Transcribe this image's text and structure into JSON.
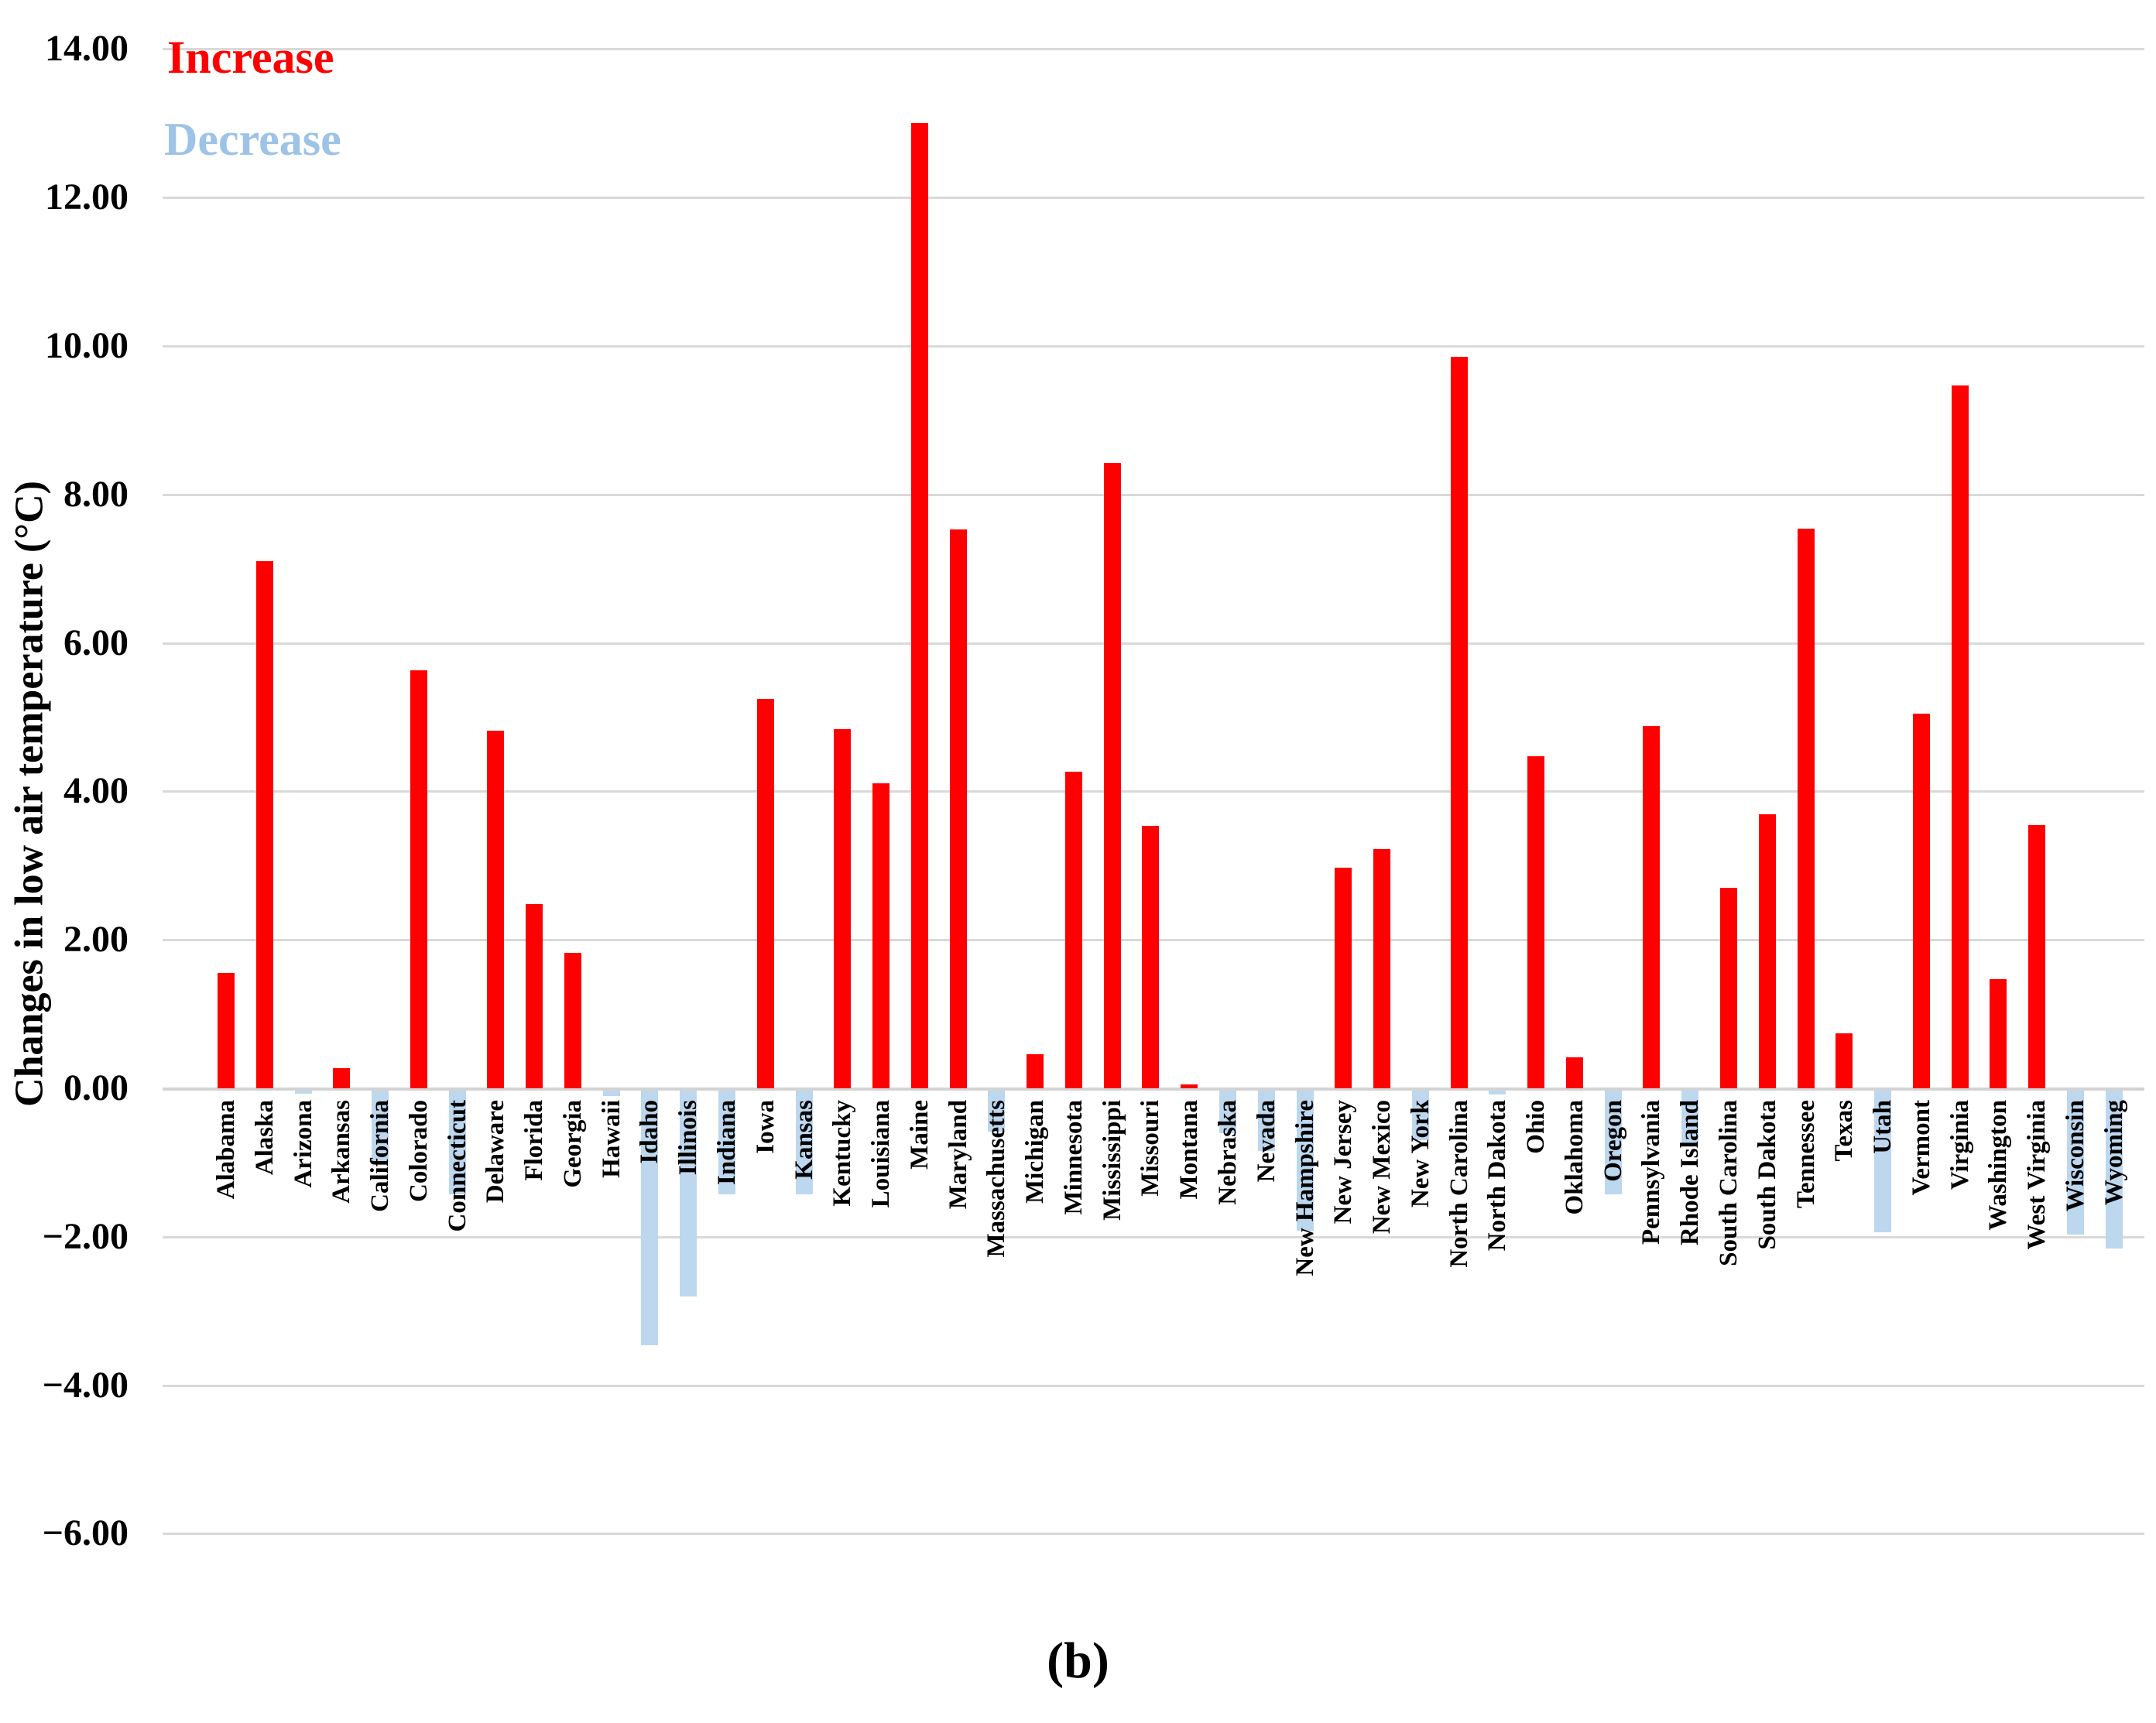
{
  "caption": "(b)",
  "legend": {
    "increase_label": "Increase",
    "decrease_label": "Decrease"
  },
  "y_axis": {
    "title": "Changes in low air temperature (°C)",
    "ticks": [
      {
        "label": "14.00",
        "value": 14
      },
      {
        "label": "12.00",
        "value": 12
      },
      {
        "label": "10.00",
        "value": 10
      },
      {
        "label": "8.00",
        "value": 8
      },
      {
        "label": "6.00",
        "value": 6
      },
      {
        "label": "4.00",
        "value": 4
      },
      {
        "label": "2.00",
        "value": 2
      },
      {
        "label": "0.00",
        "value": 0
      },
      {
        "label": "−2.00",
        "value": -2
      },
      {
        "label": "−4.00",
        "value": -4
      },
      {
        "label": "−6.00",
        "value": -6
      }
    ]
  },
  "colors": {
    "increase": "#ff0000",
    "decrease": "#bdd7ee",
    "legend_increase_text": "#ff0000",
    "legend_decrease_text": "#9dc3e6",
    "gridline": "#d9d9d9"
  },
  "chart_data": {
    "type": "bar",
    "title": "",
    "xlabel": "",
    "ylabel": "Changes in low air temperature (°C)",
    "ylim": [
      -6,
      14
    ],
    "grid": true,
    "legend_position": "top-left",
    "legend": [
      "Increase",
      "Decrease"
    ],
    "series_rule": "positive values drawn red (Increase), negative values drawn light blue (Decrease)",
    "categories": [
      "Alabama",
      "Alaska",
      "Arizona",
      "Arkansas",
      "California",
      "Colorado",
      "Connecticut",
      "Delaware",
      "Florida",
      "Georgia",
      "Hawaii",
      "Idaho",
      "Illinois",
      "Indiana",
      "Iowa",
      "Kansas",
      "Kentucky",
      "Louisiana",
      "Maine",
      "Maryland",
      "Massachusetts",
      "Michigan",
      "Minnesota",
      "Mississippi",
      "Missouri",
      "Montana",
      "Nebraska",
      "Nevada",
      "New Hampshire",
      "New Jersey",
      "New Mexico",
      "New York",
      "North Carolina",
      "North Dakota",
      "Ohio",
      "Oklahoma",
      "Oregon",
      "Pennsylvania",
      "Rhode Island",
      "South Carolina",
      "South Dakota",
      "Tennessee",
      "Texas",
      "Utah",
      "Vermont",
      "Virginia",
      "Washington",
      "West Virginia",
      "Wisconsin",
      "Wyoming"
    ],
    "values": [
      1.55,
      7.1,
      -0.07,
      0.27,
      -1.0,
      5.63,
      -1.43,
      4.82,
      2.48,
      1.82,
      -0.1,
      -3.46,
      -2.8,
      -1.43,
      5.25,
      -1.43,
      4.84,
      4.11,
      13.0,
      7.53,
      -0.58,
      0.46,
      4.27,
      8.43,
      3.54,
      0.05,
      -0.61,
      -0.84,
      -1.92,
      2.97,
      3.22,
      -0.7,
      9.85,
      -0.08,
      4.47,
      0.42,
      -1.43,
      4.88,
      -0.77,
      2.7,
      3.69,
      7.54,
      0.74,
      -1.94,
      5.05,
      9.47,
      1.47,
      3.55,
      -1.97,
      -2.16
    ]
  }
}
